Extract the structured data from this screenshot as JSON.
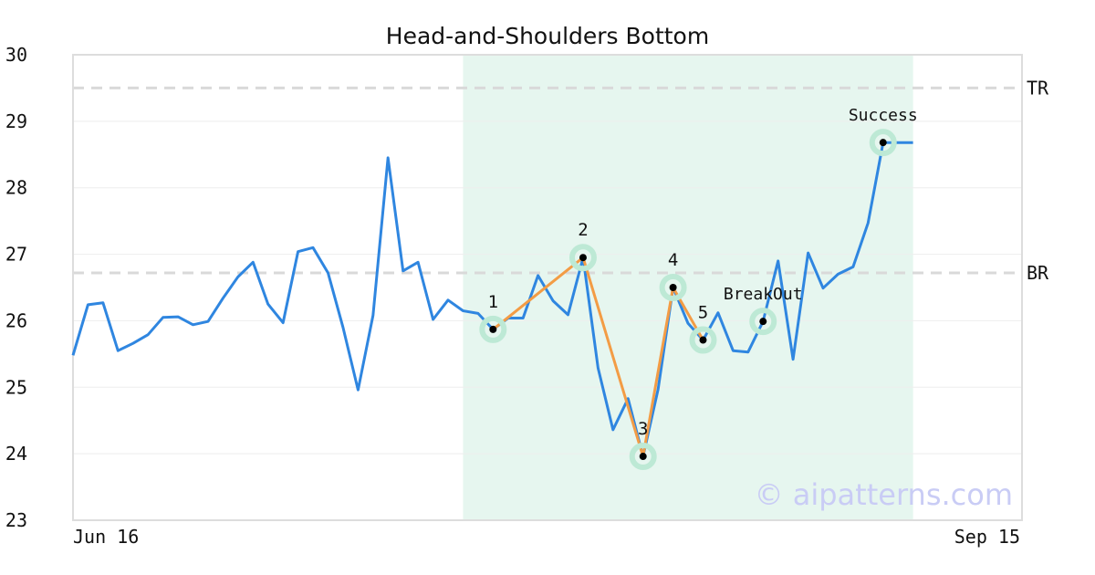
{
  "chart_data": {
    "type": "line",
    "title": "Head-and-Shoulders Bottom",
    "xlabel": "",
    "ylabel": "",
    "ylim": [
      23,
      30
    ],
    "y_ticks": [
      23,
      24,
      25,
      26,
      27,
      28,
      29,
      30
    ],
    "x_tick_labels": [
      "Jun 16",
      "Sep 15"
    ],
    "grid": true,
    "watermark": "© aipatterns.com",
    "colors": {
      "price": "#2f86e0",
      "pattern": "#f39c45",
      "highlight": "#e6f6ef",
      "marker_ring": "#bde9d5",
      "reference": "#d9d9d9",
      "watermark": "#c9ccf5"
    },
    "reference_lines": [
      {
        "label": "TR",
        "y": 29.5
      },
      {
        "label": "BR",
        "y": 26.72
      }
    ],
    "pattern_window": {
      "start_index": 26,
      "end_index": 56
    },
    "series": [
      {
        "values": [
          25.48,
          26.24,
          26.27,
          25.55,
          25.66,
          25.79,
          26.05,
          26.06,
          25.94,
          25.99,
          26.34,
          26.66,
          26.88,
          26.25,
          25.97,
          27.04,
          27.1,
          26.72,
          25.9,
          24.96,
          26.08,
          28.45,
          26.75,
          26.88,
          26.02,
          26.31,
          26.15,
          26.11,
          25.87,
          26.04,
          26.04,
          26.68,
          26.3,
          26.09,
          26.95,
          25.29,
          24.36,
          24.83,
          23.96,
          24.97,
          26.5,
          25.96,
          25.71,
          26.12,
          25.55,
          25.53,
          25.99,
          26.9,
          25.42,
          27.02,
          26.49,
          26.7,
          26.81,
          27.47,
          28.68,
          28.68,
          28.68
        ]
      }
    ],
    "pattern_points": [
      {
        "label": "1",
        "index": 28,
        "y": 25.87
      },
      {
        "label": "2",
        "index": 34,
        "y": 26.95
      },
      {
        "label": "3",
        "index": 38,
        "y": 23.96
      },
      {
        "label": "4",
        "index": 40,
        "y": 26.5
      },
      {
        "label": "5",
        "index": 42,
        "y": 25.71
      }
    ],
    "signals": [
      {
        "label": "BreakOut",
        "index": 46,
        "y": 25.99
      },
      {
        "label": "Success",
        "index": 54,
        "y": 28.68
      }
    ]
  }
}
